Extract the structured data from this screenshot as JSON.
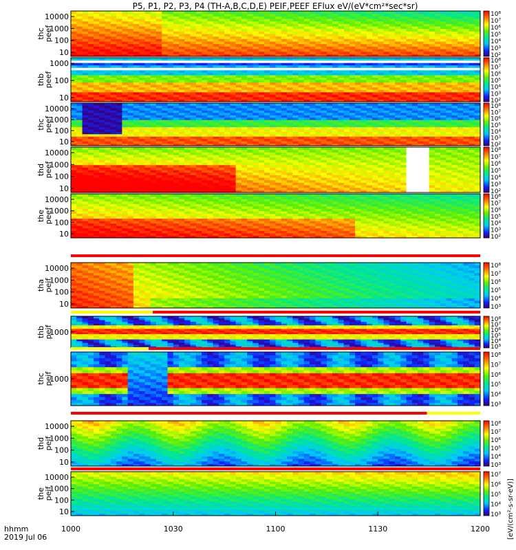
{
  "chart_data": {
    "type": "heatmap",
    "title": "P5, P1, P2, P3, P4 (TH-A,B,C,D,E) PEIF,PEEF EFlux eV/(eV*cm²*sec*sr)",
    "x_axis": {
      "ticks": [
        "1000",
        "1030",
        "1100",
        "1130",
        "1200"
      ],
      "range": [
        "10:00",
        "12:00"
      ],
      "label_lines": [
        "hhmm",
        "2019 Jul 06"
      ]
    },
    "colorbar_label": "[eV/(cm²-s-sr-eV)]",
    "colormap": "rainbow",
    "log_scale": true,
    "panels": [
      {
        "label": "thc\npeef",
        "yticks": [
          "10000",
          "1000",
          "100",
          "10"
        ],
        "cbticks": [
          "10⁸",
          "10⁷",
          "10⁶",
          "10⁵",
          "10⁴",
          "10³",
          "10²"
        ]
      },
      {
        "label": "thb\npeef",
        "yticks": [
          "1000",
          "100",
          "10"
        ],
        "cbticks": [
          "10⁸",
          "10⁷",
          "10⁶",
          "10⁵",
          "10⁴",
          "10³",
          "10²"
        ]
      },
      {
        "label": "thc\npeef",
        "yticks": [
          "10000",
          "1000",
          "100",
          "10"
        ],
        "cbticks": [
          "10⁸",
          "10⁷",
          "10⁶",
          "10⁵",
          "10⁴",
          "10³",
          "10²"
        ]
      },
      {
        "label": "thd\npeef",
        "yticks": [
          "10000",
          "1000",
          "100",
          "10"
        ],
        "cbticks": [
          "10⁸",
          "10⁷",
          "10⁶",
          "10⁵",
          "10⁴",
          "10³",
          "10²"
        ]
      },
      {
        "label": "the\npeef",
        "yticks": [
          "10000",
          "1000",
          "100",
          "10"
        ],
        "cbticks": [
          "10⁸",
          "10⁷",
          "10⁶",
          "10⁵",
          "10⁴",
          "10³",
          "10²"
        ]
      },
      {
        "label": "tha\npeif",
        "yticks": [
          "10000",
          "1000",
          "100",
          "10"
        ],
        "cbticks": [
          "10⁸",
          "10⁷",
          "10⁶",
          "10⁵",
          "10⁴",
          "10³"
        ]
      },
      {
        "label": "thb\npeif",
        "yticks": [
          "1000"
        ],
        "cbticks": [
          "10⁸",
          "10⁷",
          "10⁶",
          "10⁵",
          "10⁴",
          "10³"
        ]
      },
      {
        "label": "thc\npeif",
        "yticks": [
          "1000"
        ],
        "cbticks": [
          "10⁸",
          "10⁷",
          "10⁶",
          "10⁵",
          "10⁴",
          "10³"
        ]
      },
      {
        "label": "thd\npeif",
        "yticks": [
          "10000",
          "1000",
          "100",
          "10"
        ],
        "cbticks": [
          "10⁸",
          "10⁷",
          "10⁶",
          "10⁵",
          "10⁴",
          "10³"
        ]
      },
      {
        "label": "the\npeif",
        "yticks": [
          "10000",
          "1000",
          "100",
          "10"
        ],
        "cbticks": [
          "10⁷",
          "10⁶",
          "10⁵",
          "10⁴",
          "10³"
        ]
      }
    ]
  }
}
